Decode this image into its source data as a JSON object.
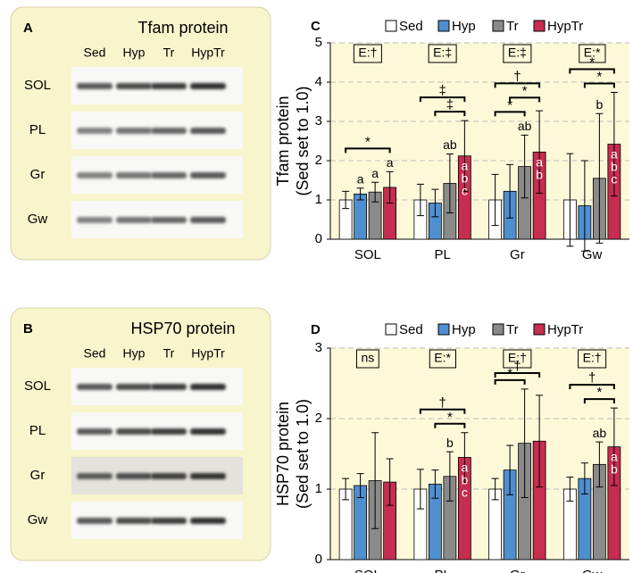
{
  "blots": [
    {
      "label": "A",
      "title": "Tfam protein",
      "lanes": [
        "Sed",
        "Hyp",
        "Tr",
        "HypTr"
      ],
      "rows": [
        "SOL",
        "PL",
        "Gr",
        "Gw"
      ]
    },
    {
      "label": "B",
      "title": "HSP70 protein",
      "lanes": [
        "Sed",
        "Hyp",
        "Tr",
        "HypTr"
      ],
      "rows": [
        "SOL",
        "PL",
        "Gr",
        "Gw"
      ]
    }
  ],
  "chart_data": [
    {
      "type": "bar",
      "label": "C",
      "ylabel": [
        "Tfam protein",
        "(Sed set to 1.0)"
      ],
      "categories": [
        "SOL",
        "PL",
        "Gr",
        "Gw"
      ],
      "series": [
        {
          "name": "Sed",
          "color": "#ffffff",
          "values": [
            1.0,
            1.0,
            1.0,
            1.0
          ],
          "errors": [
            0.22,
            0.4,
            0.65,
            1.18
          ],
          "letters": [
            null,
            null,
            null,
            null
          ]
        },
        {
          "name": "Hyp",
          "color": "#4f8fd0",
          "values": [
            1.15,
            0.92,
            1.22,
            0.85
          ],
          "errors": [
            0.15,
            0.35,
            0.68,
            1.15
          ],
          "letters": [
            "a",
            null,
            null,
            null
          ]
        },
        {
          "name": "Tr",
          "color": "#8a8a8a",
          "values": [
            1.2,
            1.42,
            1.85,
            1.55
          ],
          "errors": [
            0.25,
            0.75,
            0.8,
            1.65
          ],
          "letters": [
            "a",
            "ab",
            "ab",
            "b"
          ]
        },
        {
          "name": "HypTr",
          "color": "#c62d50",
          "values": [
            1.32,
            2.12,
            2.22,
            2.42
          ],
          "errors": [
            0.4,
            0.9,
            1.05,
            1.32
          ],
          "letters": [
            "a",
            "abc",
            "ab",
            "abc"
          ]
        }
      ],
      "ylim": [
        0,
        5
      ],
      "yticks": [
        0,
        1,
        2,
        3,
        4,
        5
      ],
      "grid": true,
      "effects": [
        "E:†",
        "E:‡",
        "E:‡",
        "E:*"
      ],
      "brackets": [
        [
          {
            "from": "Sed",
            "to": "HypTr",
            "label": "*"
          }
        ],
        [
          {
            "from": "Sed",
            "to": "HypTr",
            "label": "‡"
          },
          {
            "from": "Hyp",
            "to": "HypTr",
            "label": "‡"
          }
        ],
        [
          {
            "from": "Sed",
            "to": "HypTr",
            "label": "†"
          },
          {
            "from": "Hyp",
            "to": "HypTr",
            "label": "*"
          },
          {
            "from": "Sed",
            "to": "Tr",
            "label": "*"
          }
        ],
        [
          {
            "from": "Sed",
            "to": "HypTr",
            "label": "*"
          },
          {
            "from": "Hyp",
            "to": "HypTr",
            "label": "*"
          }
        ]
      ]
    },
    {
      "type": "bar",
      "label": "D",
      "ylabel": [
        "HSP70 protein",
        "(Sed set to 1.0)"
      ],
      "categories": [
        "SOL",
        "PL",
        "Gr",
        "Gw"
      ],
      "series": [
        {
          "name": "Sed",
          "color": "#ffffff",
          "values": [
            1.0,
            1.0,
            1.0,
            1.0
          ],
          "errors": [
            0.15,
            0.28,
            0.15,
            0.17
          ],
          "letters": [
            null,
            null,
            null,
            null
          ]
        },
        {
          "name": "Hyp",
          "color": "#4f8fd0",
          "values": [
            1.05,
            1.07,
            1.27,
            1.15
          ],
          "errors": [
            0.17,
            0.2,
            0.35,
            0.22
          ],
          "letters": [
            null,
            null,
            null,
            null
          ]
        },
        {
          "name": "Tr",
          "color": "#8a8a8a",
          "values": [
            1.12,
            1.18,
            1.65,
            1.35
          ],
          "errors": [
            0.68,
            0.35,
            0.77,
            0.32
          ],
          "letters": [
            null,
            "b",
            null,
            "ab"
          ]
        },
        {
          "name": "HypTr",
          "color": "#c62d50",
          "values": [
            1.1,
            1.45,
            1.68,
            1.6
          ],
          "errors": [
            0.33,
            0.35,
            0.65,
            0.55
          ],
          "letters": [
            null,
            "abc",
            null,
            "ab"
          ]
        }
      ],
      "ylim": [
        0,
        3
      ],
      "yticks": [
        0,
        1,
        2,
        3
      ],
      "grid": true,
      "effects": [
        "ns",
        "E:*",
        "E:†",
        "E:†"
      ],
      "brackets": [
        [],
        [
          {
            "from": "Sed",
            "to": "HypTr",
            "label": "†"
          },
          {
            "from": "Hyp",
            "to": "HypTr",
            "label": "*"
          }
        ],
        [
          {
            "from": "Sed",
            "to": "HypTr",
            "label": "†"
          },
          {
            "from": "Sed",
            "to": "Tr",
            "label": "*"
          }
        ],
        [
          {
            "from": "Sed",
            "to": "HypTr",
            "label": "†"
          },
          {
            "from": "Hyp",
            "to": "HypTr",
            "label": "*"
          }
        ]
      ]
    }
  ]
}
